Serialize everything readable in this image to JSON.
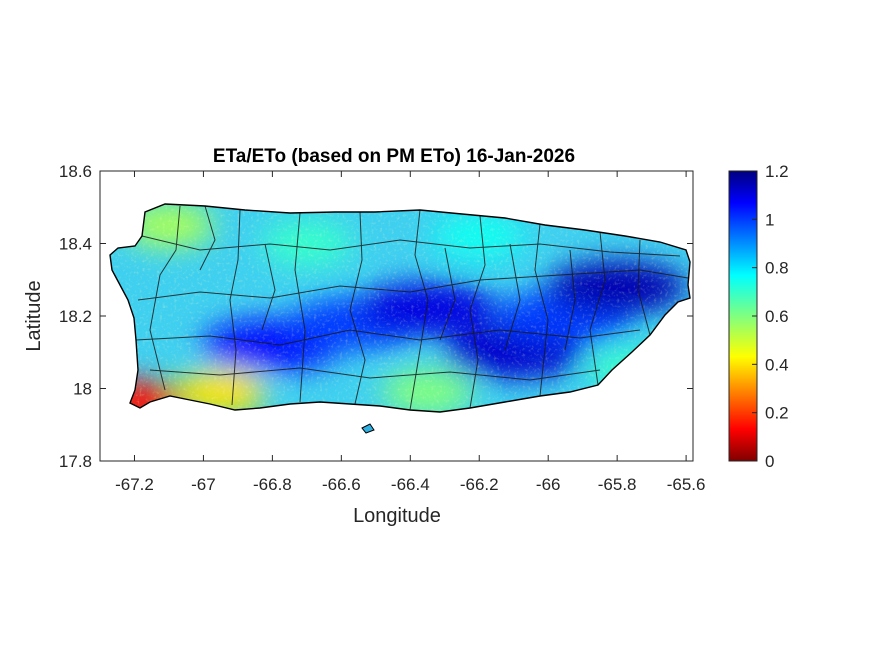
{
  "chart_data": {
    "type": "heatmap",
    "title": "ETa/ETo (based on PM ETo) 16-Jan-2026",
    "xlabel": "Longitude",
    "ylabel": "Latitude",
    "xlim": [
      -67.3,
      -65.58
    ],
    "ylim": [
      17.8,
      18.6
    ],
    "xticks": [
      "-67.2",
      "-67",
      "-66.8",
      "-66.6",
      "-66.4",
      "-66.2",
      "-66",
      "-65.8",
      "-65.6"
    ],
    "yticks": [
      "18.6",
      "18.4",
      "18.2",
      "18",
      "17.8"
    ],
    "colorbar": {
      "range": [
        0,
        1.2
      ],
      "ticks": [
        "1.2",
        "1",
        "0.8",
        "0.6",
        "0.4",
        "0.2",
        "0"
      ],
      "colormap": "jet"
    },
    "regions": [
      {
        "lon": -67.2,
        "lat": 17.96,
        "value": 0.15
      },
      {
        "lon": -66.95,
        "lat": 17.99,
        "value": 0.4
      },
      {
        "lon": -67.1,
        "lat": 18.45,
        "value": 0.55
      },
      {
        "lon": -66.8,
        "lat": 18.12,
        "value": 1.05
      },
      {
        "lon": -66.55,
        "lat": 18.18,
        "value": 1.0
      },
      {
        "lon": -66.35,
        "lat": 18.22,
        "value": 1.1
      },
      {
        "lon": -66.1,
        "lat": 18.1,
        "value": 1.12
      },
      {
        "lon": -65.95,
        "lat": 18.2,
        "value": 1.0
      },
      {
        "lon": -65.8,
        "lat": 18.28,
        "value": 1.15
      },
      {
        "lon": -66.35,
        "lat": 17.99,
        "value": 0.6
      },
      {
        "lon": -66.7,
        "lat": 18.4,
        "value": 0.7
      },
      {
        "lon": -66.2,
        "lat": 18.42,
        "value": 0.75
      },
      {
        "lon": -65.75,
        "lat": 18.05,
        "value": 0.7
      }
    ]
  }
}
